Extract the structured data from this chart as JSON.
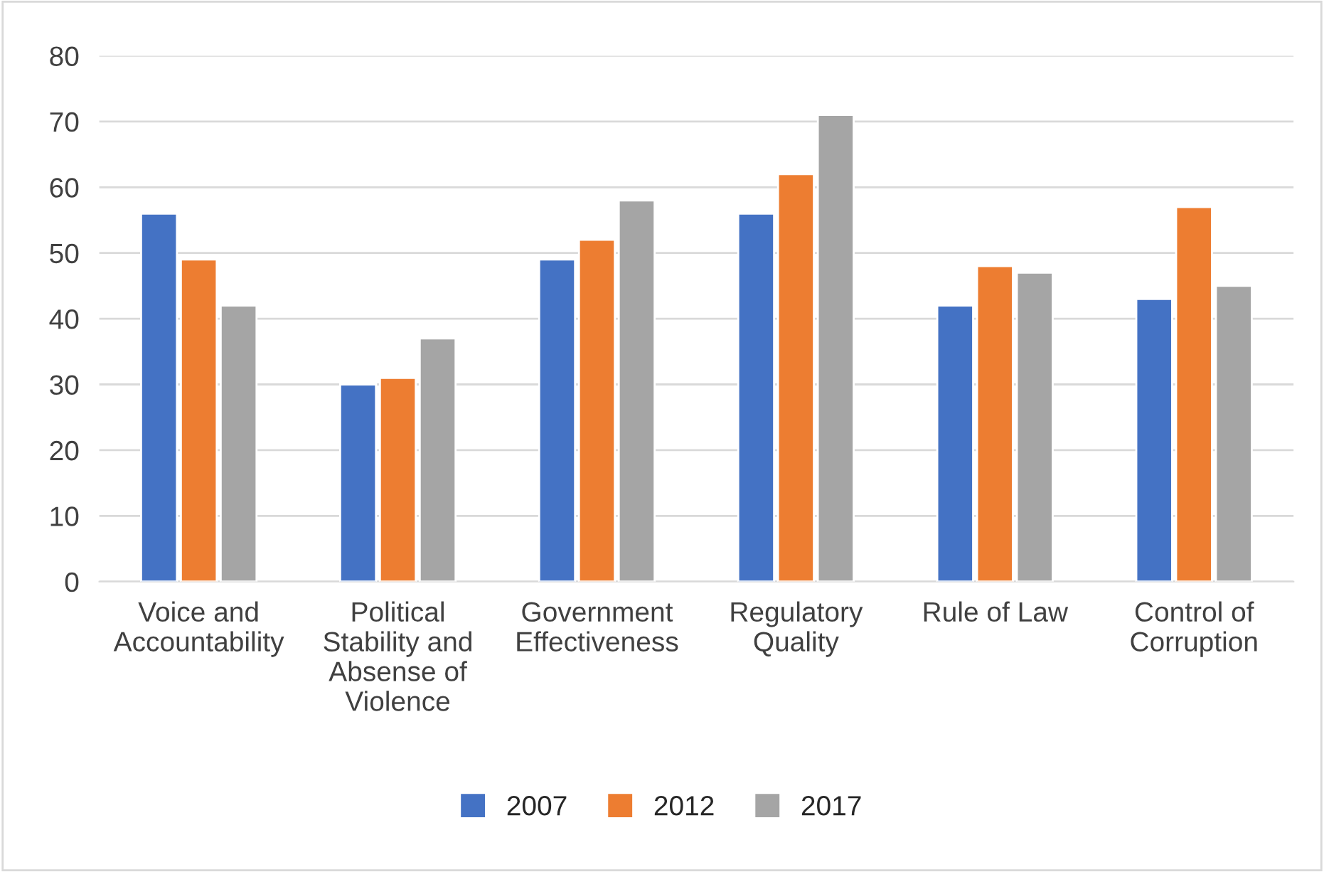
{
  "chart_data": {
    "type": "bar",
    "categories": [
      "Voice and\nAccountability",
      "Political\nStability and\nAbsense of\nViolence",
      "Government\nEffectiveness",
      "Regulatory\nQuality",
      "Rule of Law",
      "Control of\nCorruption"
    ],
    "series": [
      {
        "name": "2007",
        "color": "#4472c4",
        "values": [
          56,
          30,
          49,
          56,
          42,
          43
        ]
      },
      {
        "name": "2012",
        "color": "#ed7d31",
        "values": [
          49,
          31,
          52,
          62,
          48,
          57
        ]
      },
      {
        "name": "2017",
        "color": "#a5a5a5",
        "values": [
          42,
          37,
          58,
          71,
          47,
          45
        ]
      }
    ],
    "ylim": [
      0,
      80
    ],
    "yticks": [
      0,
      10,
      20,
      30,
      40,
      50,
      60,
      70,
      80
    ],
    "grid": "y",
    "legend": "bottom"
  }
}
